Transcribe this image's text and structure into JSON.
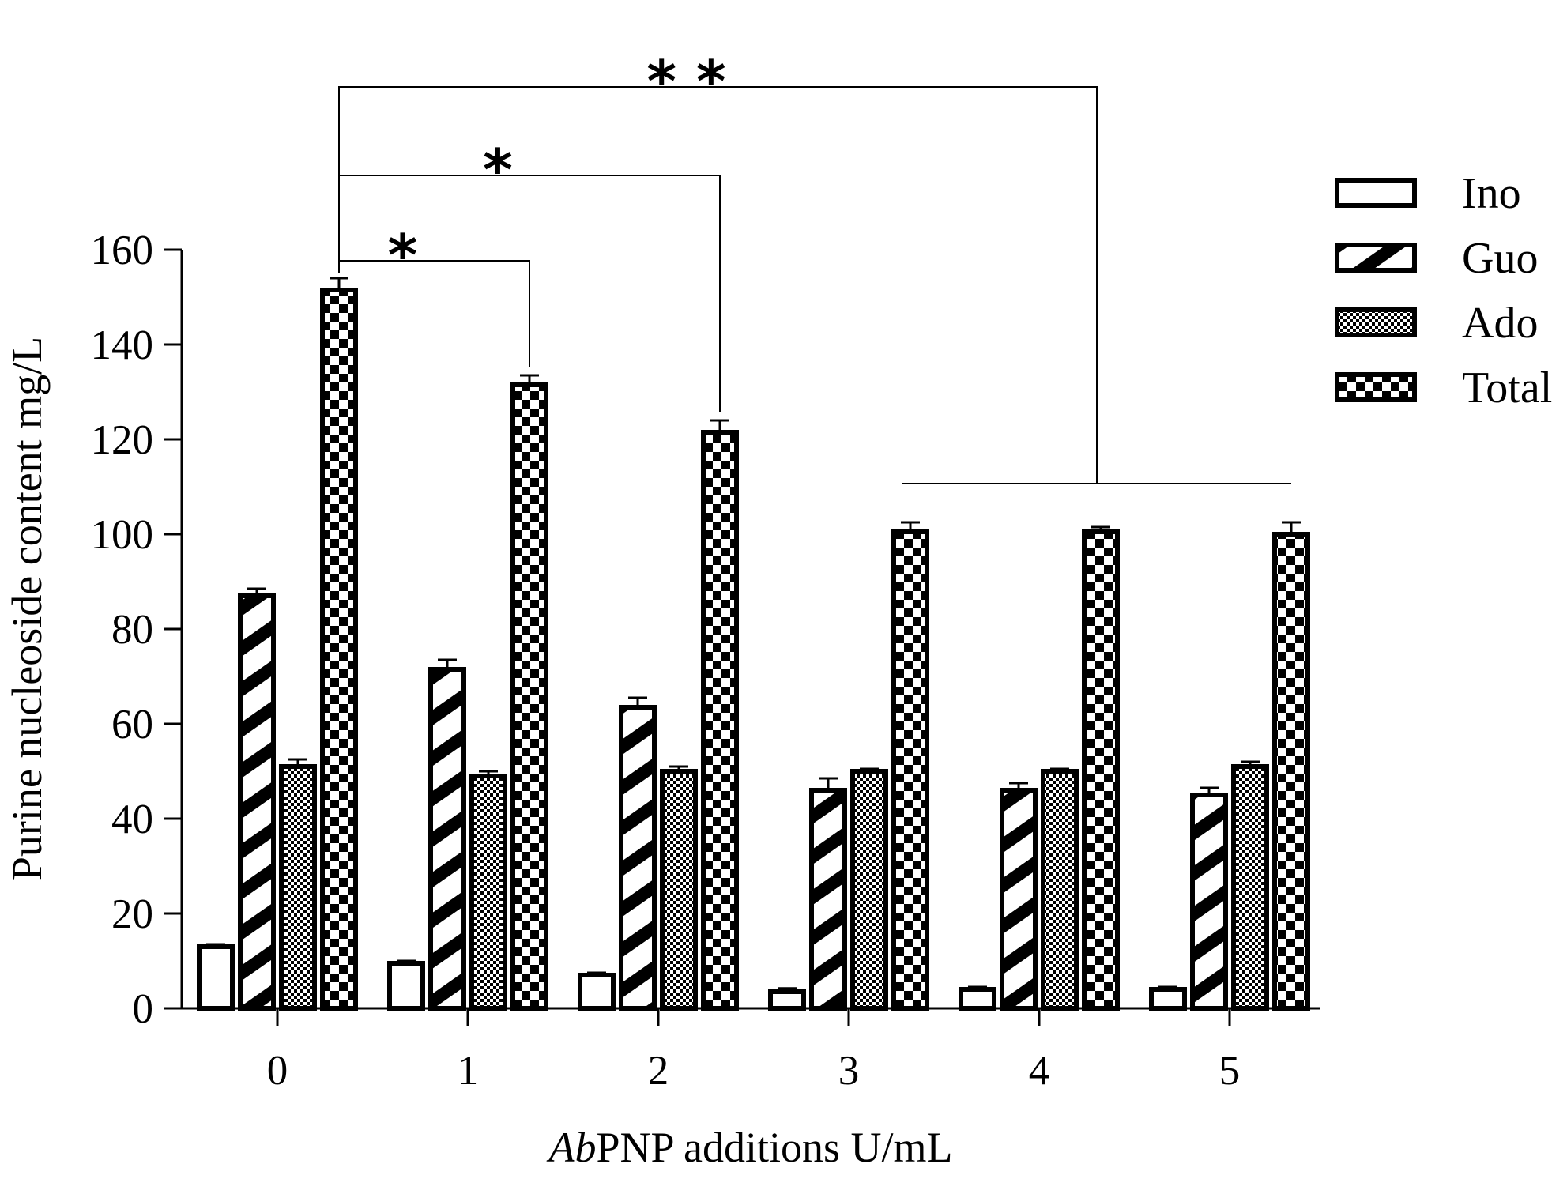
{
  "chart_data": {
    "type": "bar",
    "title": "",
    "ylabel": "Purine nucleoside content mg/L",
    "xlabel": {
      "italic": "Ab",
      "rest": "PNP additions U/mL"
    },
    "categories": [
      "0",
      "1",
      "2",
      "3",
      "4",
      "5"
    ],
    "ylim": [
      0,
      160
    ],
    "yticks": [
      "0",
      "20",
      "40",
      "60",
      "80",
      "100",
      "120",
      "140",
      "160"
    ],
    "series": [
      {
        "name": "Ino",
        "pattern": "open",
        "values": [
          13,
          9.5,
          7,
          3.5,
          4,
          4
        ],
        "errors": [
          0.5,
          0.5,
          0.5,
          0.7,
          0.5,
          0.5
        ]
      },
      {
        "name": "Guo",
        "pattern": "diagonal",
        "values": [
          87,
          71.5,
          63.5,
          46,
          46,
          45
        ],
        "errors": [
          1.5,
          2,
          2,
          2.5,
          1.5,
          1.5
        ]
      },
      {
        "name": "Ado",
        "pattern": "checker",
        "values": [
          51,
          49,
          50,
          50,
          50,
          51
        ],
        "errors": [
          1.5,
          1,
          1,
          0.5,
          0.5,
          1
        ]
      },
      {
        "name": "Total",
        "pattern": "checker-large",
        "values": [
          151.5,
          131.5,
          121.5,
          100.5,
          100.5,
          100
        ],
        "errors": [
          2.5,
          2,
          2.5,
          2,
          1,
          2.5
        ]
      }
    ],
    "legend_position": "top-right",
    "significance": [
      {
        "from_category": "0",
        "to_categories": [
          "1"
        ],
        "label": "*"
      },
      {
        "from_category": "0",
        "to_categories": [
          "2"
        ],
        "label": "*"
      },
      {
        "from_category": "0",
        "to_categories": [
          "3",
          "4",
          "5"
        ],
        "label": "**"
      }
    ],
    "colors": {
      "ink": "#000000",
      "fill": "#ffffff"
    }
  }
}
